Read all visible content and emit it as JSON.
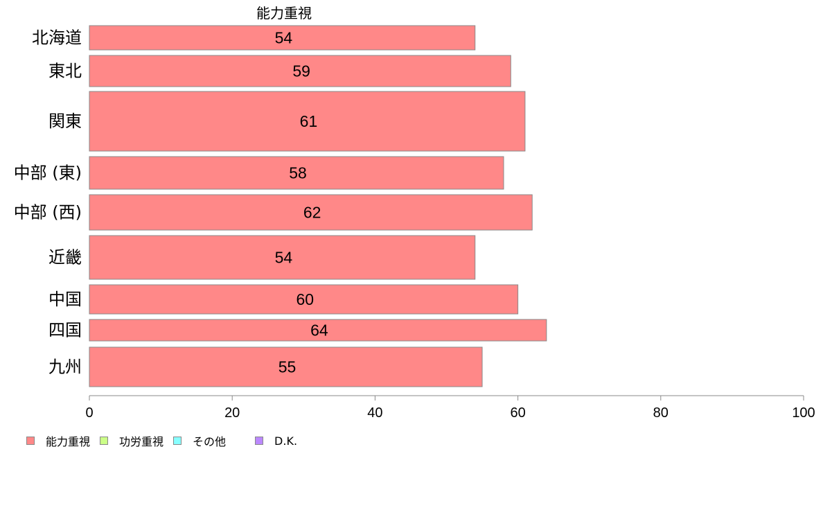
{
  "chart_data": {
    "type": "bar",
    "orientation": "horizontal",
    "title": "能力重視",
    "categories": [
      "北海道",
      "東北",
      "関東",
      "中部 (東)",
      "中部 (西)",
      "近畿",
      "中国",
      "四国",
      "九州"
    ],
    "values": [
      54,
      59,
      61,
      58,
      62,
      54,
      60,
      64,
      55
    ],
    "xlim": [
      0,
      100
    ],
    "xticks": [
      "0",
      "20",
      "40",
      "60",
      "80",
      "100"
    ],
    "bar_color": "#ff8888",
    "legend_position": "bottom-left",
    "legend": [
      {
        "label": "能力重視",
        "color": "#ff8888"
      },
      {
        "label": "功労重視",
        "color": "#ccff88"
      },
      {
        "label": "その他",
        "color": "#88ffff"
      },
      {
        "label": "D.K.",
        "color": "#bb88ff"
      }
    ]
  }
}
